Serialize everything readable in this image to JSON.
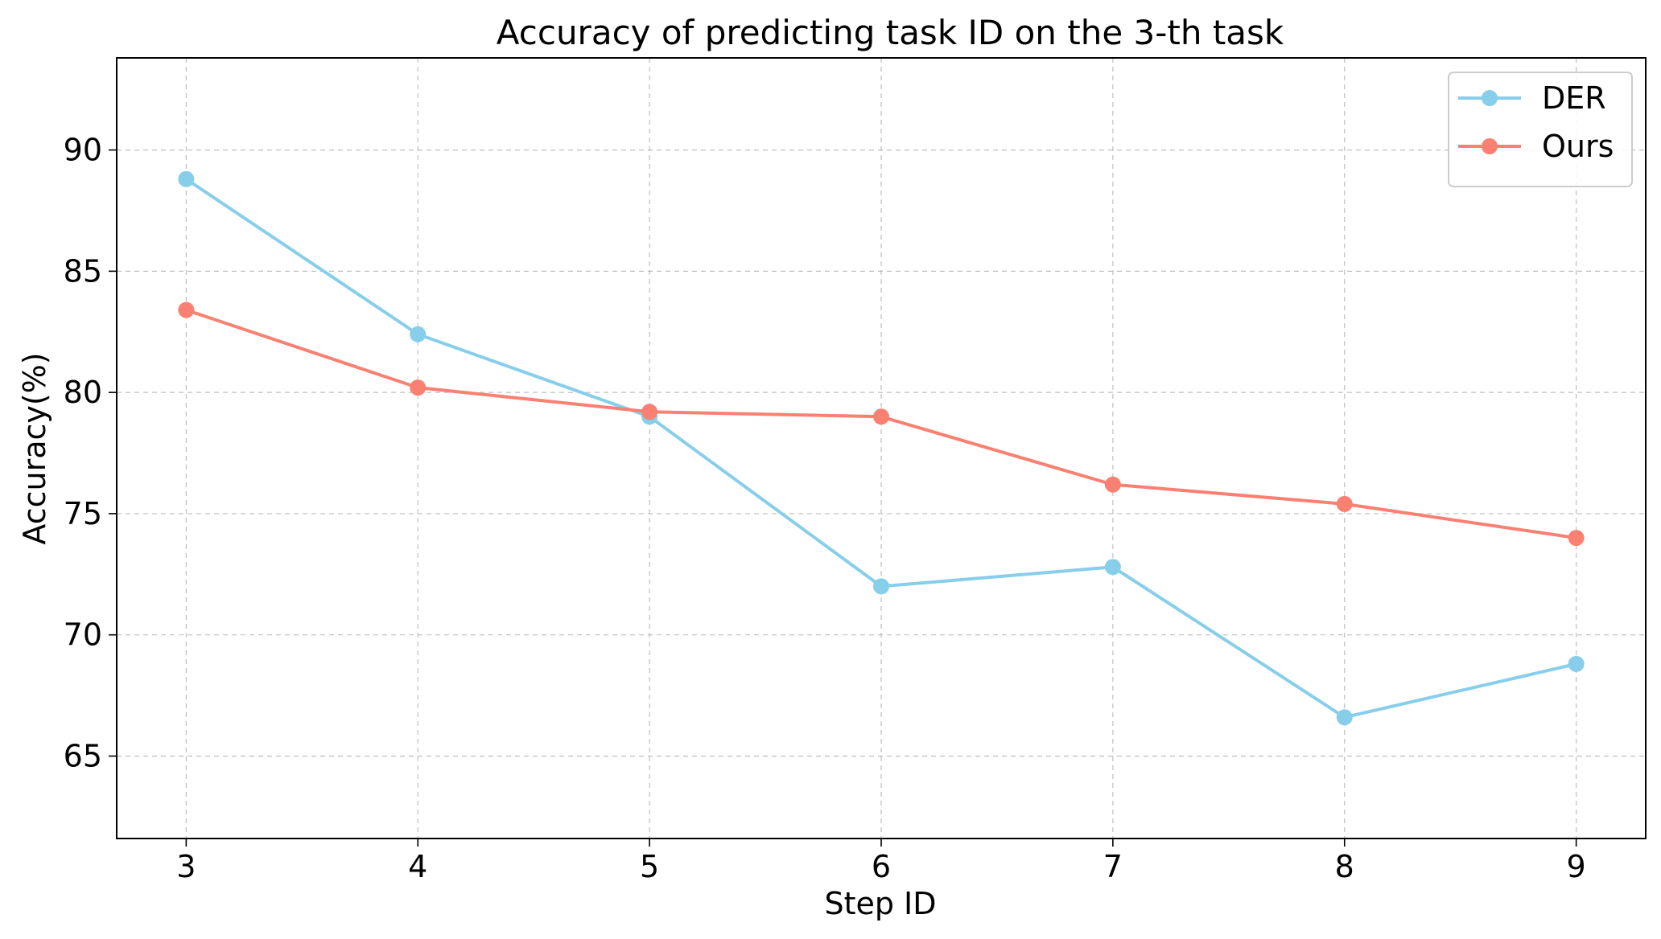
{
  "chart_data": {
    "type": "line",
    "title": "Accuracy of predicting task ID on the 3-th task",
    "xlabel": "Step ID",
    "ylabel": "Accuracy(%)",
    "x": [
      3,
      4,
      5,
      6,
      7,
      8,
      9
    ],
    "xlim": [
      2.7,
      9.3
    ],
    "ylim": [
      61.6,
      93.8
    ],
    "xticks": [
      3,
      4,
      5,
      6,
      7,
      8,
      9
    ],
    "yticks": [
      65,
      70,
      75,
      80,
      85,
      90
    ],
    "grid": true,
    "legend_position": "top-right",
    "series": [
      {
        "name": "DER",
        "color": "#87ceeb",
        "values": [
          88.8,
          82.4,
          79.0,
          72.0,
          72.8,
          66.6,
          68.8
        ]
      },
      {
        "name": "Ours",
        "color": "#fa8072",
        "values": [
          83.4,
          80.2,
          79.2,
          79.0,
          76.2,
          75.4,
          74.0
        ]
      }
    ]
  }
}
